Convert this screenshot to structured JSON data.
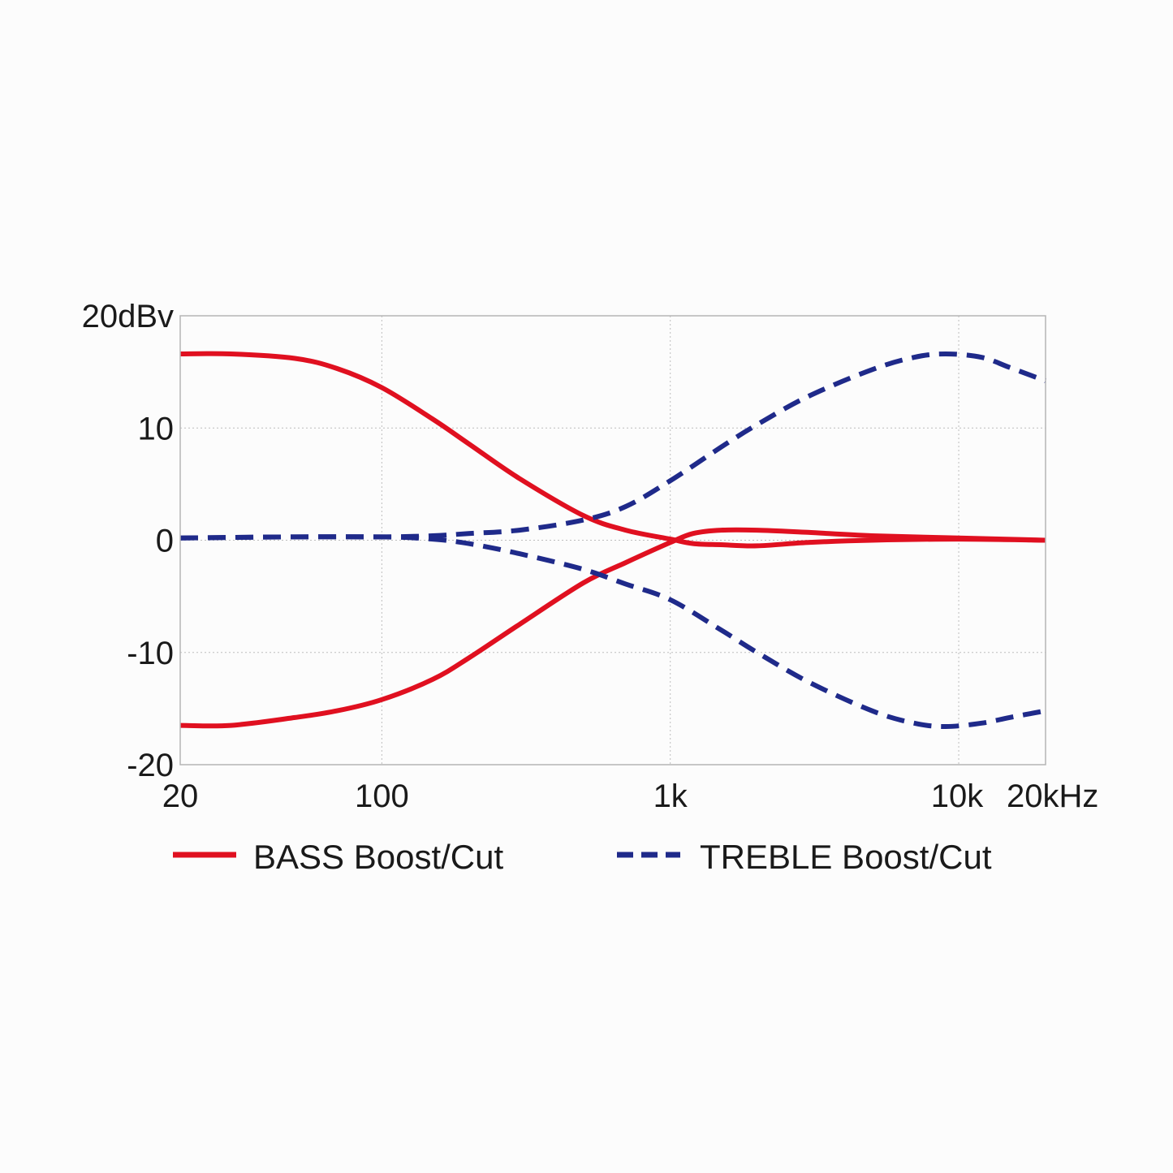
{
  "chart_data": {
    "type": "line",
    "xscale": "log",
    "xlim": [
      20,
      20000
    ],
    "ylim": [
      -20,
      20
    ],
    "grid": true,
    "legend_position": "bottom",
    "x_ticks": [
      {
        "value": 20,
        "label": "20"
      },
      {
        "value": 100,
        "label": "100"
      },
      {
        "value": 1000,
        "label": "1k"
      },
      {
        "value": 10000,
        "label": "10k"
      },
      {
        "value": 20000,
        "label": "20kHz"
      }
    ],
    "y_ticks": [
      {
        "value": 20,
        "label": "20dBv"
      },
      {
        "value": 10,
        "label": "10"
      },
      {
        "value": 0,
        "label": "0"
      },
      {
        "value": -10,
        "label": "-10"
      },
      {
        "value": -20,
        "label": "-20"
      }
    ],
    "series": [
      {
        "name": "BASS Boost/Cut",
        "group": "bass",
        "curve": "boost",
        "color": "#e01020",
        "style": "solid",
        "points": [
          [
            20,
            16.6
          ],
          [
            30,
            16.6
          ],
          [
            50,
            16.2
          ],
          [
            70,
            15.3
          ],
          [
            100,
            13.6
          ],
          [
            150,
            10.8
          ],
          [
            200,
            8.6
          ],
          [
            300,
            5.5
          ],
          [
            500,
            2.2
          ],
          [
            700,
            0.9
          ],
          [
            1000,
            0.1
          ],
          [
            1200,
            -0.3
          ],
          [
            1500,
            -0.4
          ],
          [
            2000,
            -0.5
          ],
          [
            3000,
            -0.2
          ],
          [
            5000,
            0.0
          ],
          [
            10000,
            0.1
          ],
          [
            20000,
            0.0
          ]
        ]
      },
      {
        "name": "BASS Boost/Cut",
        "group": "bass",
        "curve": "cut",
        "color": "#e01020",
        "style": "solid",
        "points": [
          [
            20,
            -16.5
          ],
          [
            30,
            -16.5
          ],
          [
            50,
            -15.8
          ],
          [
            70,
            -15.2
          ],
          [
            100,
            -14.2
          ],
          [
            150,
            -12.4
          ],
          [
            200,
            -10.5
          ],
          [
            300,
            -7.5
          ],
          [
            500,
            -3.8
          ],
          [
            700,
            -2.0
          ],
          [
            1000,
            -0.2
          ],
          [
            1200,
            0.6
          ],
          [
            1500,
            0.9
          ],
          [
            2000,
            0.9
          ],
          [
            3000,
            0.7
          ],
          [
            5000,
            0.4
          ],
          [
            10000,
            0.2
          ],
          [
            20000,
            0.0
          ]
        ]
      },
      {
        "name": "TREBLE Boost/Cut",
        "group": "treble",
        "curve": "boost",
        "color": "#1f2a8a",
        "style": "dashed",
        "points": [
          [
            20,
            0.2
          ],
          [
            50,
            0.3
          ],
          [
            100,
            0.3
          ],
          [
            150,
            0.4
          ],
          [
            200,
            0.6
          ],
          [
            300,
            0.9
          ],
          [
            500,
            1.8
          ],
          [
            700,
            3.0
          ],
          [
            1000,
            5.3
          ],
          [
            1500,
            8.3
          ],
          [
            2000,
            10.3
          ],
          [
            3000,
            12.8
          ],
          [
            5000,
            15.2
          ],
          [
            7000,
            16.3
          ],
          [
            9000,
            16.6
          ],
          [
            12000,
            16.3
          ],
          [
            15000,
            15.4
          ],
          [
            20000,
            14.2
          ]
        ]
      },
      {
        "name": "TREBLE Boost/Cut",
        "group": "treble",
        "curve": "cut",
        "color": "#1f2a8a",
        "style": "dashed",
        "points": [
          [
            20,
            0.2
          ],
          [
            50,
            0.3
          ],
          [
            100,
            0.3
          ],
          [
            150,
            0.1
          ],
          [
            200,
            -0.3
          ],
          [
            300,
            -1.2
          ],
          [
            500,
            -2.6
          ],
          [
            700,
            -3.9
          ],
          [
            1000,
            -5.3
          ],
          [
            1500,
            -8.0
          ],
          [
            2000,
            -10.0
          ],
          [
            3000,
            -12.6
          ],
          [
            5000,
            -15.2
          ],
          [
            7000,
            -16.3
          ],
          [
            9000,
            -16.6
          ],
          [
            12000,
            -16.3
          ],
          [
            15000,
            -15.8
          ],
          [
            20000,
            -15.2
          ]
        ]
      }
    ],
    "legend": [
      {
        "label": "BASS Boost/Cut",
        "color": "#e01020",
        "style": "solid"
      },
      {
        "label": "TREBLE Boost/Cut",
        "color": "#1f2a8a",
        "style": "dashed"
      }
    ]
  }
}
